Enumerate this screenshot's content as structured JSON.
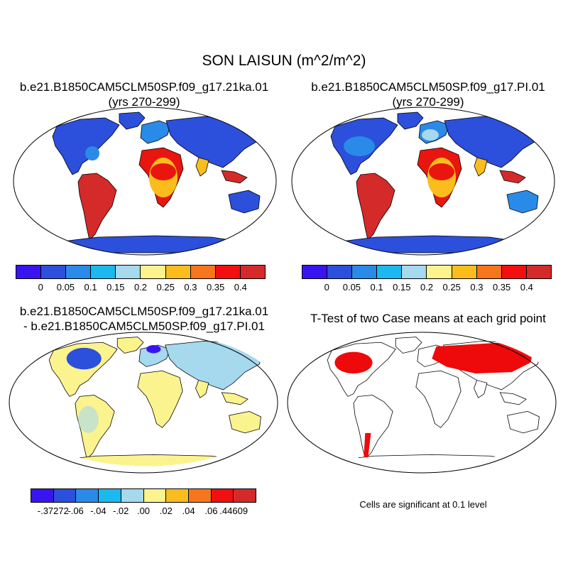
{
  "figure": {
    "title": "SON LAISUN (m^2/m^2)"
  },
  "panels": {
    "top_left": {
      "title_line1": "b.e21.B1850CAM5CLM50SP.f09_g17.21ka.01",
      "title_line2": "(yrs 270-299)"
    },
    "top_right": {
      "title_line1": "b.e21.B1850CAM5CLM50SP.f09_g17.PI.01",
      "title_line2": "(yrs 270-299)"
    },
    "bottom_left": {
      "title_line1": "b.e21.B1850CAM5CLM50SP.f09_g17.21ka.01",
      "title_line2": "- b.e21.B1850CAM5CLM50SP.f09_g17.PI.01"
    },
    "bottom_right": {
      "title_line1": "T-Test of two Case means at each grid point",
      "note": "Cells are significant at 0.1 level"
    }
  },
  "colorbars": {
    "absolute": {
      "colors": [
        "#3a14f0",
        "#2c4fdc",
        "#2a8ae8",
        "#1cb8f0",
        "#a6d8ee",
        "#fbf38e",
        "#fbbd1c",
        "#f7751c",
        "#f20f0f",
        "#d42a2a"
      ],
      "labels": [
        "0",
        "0.05",
        "0.1",
        "0.15",
        "0.2",
        "0.25",
        "0.3",
        "0.35",
        "0.4"
      ]
    },
    "difference": {
      "colors": [
        "#3a14f0",
        "#2c4fdc",
        "#2a8ae8",
        "#1cb8f0",
        "#a6d8ee",
        "#fbf38e",
        "#fbbd1c",
        "#f7751c",
        "#f20f0f",
        "#d42a2a"
      ],
      "labels": [
        "-.37272",
        "-.06",
        "-.04",
        "-.02",
        ".00",
        ".02",
        ".04",
        ".06",
        ".44609"
      ]
    }
  },
  "map_colors": {
    "high_lat_low": "#2c4fdc",
    "mid_low": "#2a8ae8",
    "light_blue": "#a6d8ee",
    "yellow": "#fbf38e",
    "orange": "#fbbd1c",
    "red": "#e8160f",
    "dark_red": "#d42a2a",
    "significant": "#ee0a0a"
  }
}
